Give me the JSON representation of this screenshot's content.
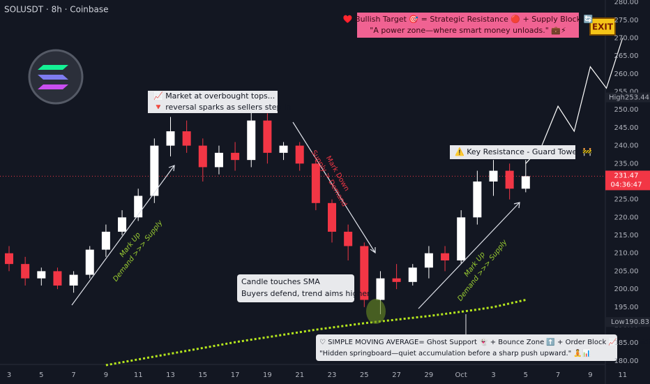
{
  "chart_data": {
    "type": "candlestick",
    "symbol": "SOLUSDT · 8h · Coinbase",
    "categories": [
      "3",
      null,
      "5",
      null,
      "7",
      null,
      "9",
      null,
      "11",
      null,
      "13",
      null,
      "15",
      null,
      "17",
      null,
      "19",
      null,
      "21",
      null,
      "23",
      null,
      "25",
      null,
      "27",
      null,
      "29",
      null,
      "Oct",
      null,
      "3",
      null,
      "5",
      null,
      "7",
      null,
      "9",
      null,
      "11"
    ],
    "open": [
      210,
      207,
      203,
      205,
      201,
      204,
      211,
      216,
      220,
      226,
      240,
      244,
      240,
      234,
      238,
      236,
      247,
      238,
      240,
      235,
      224,
      216,
      212,
      197,
      203,
      202,
      206,
      210,
      208,
      220,
      230,
      233,
      228,
      null,
      null,
      null,
      null,
      null,
      null
    ],
    "high": [
      212,
      209,
      206,
      206,
      205,
      212,
      218,
      222,
      228,
      242,
      248,
      247,
      242,
      240,
      241,
      250,
      249,
      241,
      241,
      236,
      225,
      218,
      213,
      205,
      207,
      207,
      212,
      212,
      222,
      233,
      236,
      235,
      236,
      null,
      null,
      null,
      null,
      null,
      null
    ],
    "low": [
      205,
      201,
      201,
      200,
      199,
      203,
      209,
      215,
      219,
      224,
      237,
      238,
      230,
      232,
      233,
      234,
      235,
      236,
      233,
      222,
      213,
      208,
      195,
      193,
      200,
      201,
      203,
      205,
      207,
      218,
      226,
      225,
      227,
      null,
      null,
      null,
      null,
      null,
      null
    ],
    "close": [
      207,
      203,
      205,
      201,
      204,
      211,
      216,
      220,
      226,
      240,
      244,
      240,
      234,
      238,
      236,
      247,
      238,
      240,
      235,
      224,
      216,
      212,
      197,
      203,
      202,
      206,
      210,
      208,
      220,
      230,
      233,
      228,
      231.47,
      null,
      null,
      null,
      null,
      null,
      null
    ],
    "up_color": "#ffffff",
    "down_color": "#f23645",
    "sma": {
      "color": "#b5e61d",
      "values": [
        null,
        null,
        null,
        null,
        null,
        null,
        178.8,
        179.6,
        180.4,
        181.2,
        182.0,
        182.8,
        183.6,
        184.4,
        185.2,
        185.9,
        186.6,
        187.3,
        188.0,
        188.7,
        189.3,
        189.9,
        190.5,
        191.0,
        191.5,
        192.0,
        192.5,
        193.1,
        193.7,
        194.3,
        195.0,
        196.0,
        197.0,
        null,
        null,
        null,
        null,
        null,
        null
      ]
    },
    "projection": {
      "color": "#ffffff",
      "values": [
        null,
        null,
        null,
        null,
        null,
        null,
        null,
        null,
        null,
        null,
        null,
        null,
        null,
        null,
        null,
        null,
        null,
        null,
        null,
        null,
        null,
        null,
        null,
        null,
        null,
        null,
        null,
        null,
        null,
        null,
        null,
        null,
        235,
        240,
        251,
        244,
        262,
        256,
        270
      ]
    },
    "ylim": [
      179,
      280.6
    ],
    "yticks": [
      {
        "value": 180,
        "label": "180.00"
      },
      {
        "value": 185,
        "label": "185.00"
      },
      {
        "value": 190,
        "label": "190.00"
      },
      {
        "value": 195,
        "label": "195.00"
      },
      {
        "value": 200,
        "label": "200.00"
      },
      {
        "value": 205,
        "label": "205.00"
      },
      {
        "value": 210,
        "label": "210.00"
      },
      {
        "value": 215,
        "label": "215.00"
      },
      {
        "value": 220,
        "label": "220.00"
      },
      {
        "value": 225,
        "label": "225.00"
      },
      {
        "value": 230,
        "label": "230.00"
      },
      {
        "value": 235,
        "label": "235.00"
      },
      {
        "value": 240,
        "label": "240.00"
      },
      {
        "value": 245,
        "label": "245.00"
      },
      {
        "value": 250,
        "label": "250.00"
      },
      {
        "value": 255,
        "label": "255.00"
      },
      {
        "value": 260,
        "label": "260.00"
      },
      {
        "value": 265,
        "label": "265.00"
      },
      {
        "value": 270,
        "label": "270.00"
      },
      {
        "value": 275,
        "label": "275.00"
      },
      {
        "value": 280,
        "label": "280.00"
      }
    ],
    "grid": false,
    "last_price": {
      "value": 231.47,
      "countdown": "04:36:47",
      "color": "#f23645"
    },
    "high_marker": {
      "label": "High",
      "value": 253.44
    },
    "low_marker": {
      "label": "Low",
      "value": 190.83
    },
    "annotations": {
      "overbought": [
        "📈 Market at overbought tops...",
        "🔻 reversal sparks as sellers step in."
      ],
      "mark_down": [
        "Mark Down",
        "Supply > Demand"
      ],
      "mark_up_1": [
        "Mark Up",
        "Demand >>> Supply"
      ],
      "mark_up_2": [
        "Mark Up",
        "Demand >>> Supply"
      ],
      "resistance": "⚠️ Key Resistance - Guard Tower 🚧",
      "target": [
        "♥️ Bullish Target 🎯 = Strategic Resistance 🔴 + Supply Block 🔄",
        "\"A power zone—where smart money unloads.\" 💼⚡"
      ],
      "exit": "EXIT",
      "sma_touch": [
        "Candle touches SMA",
        "Buyers defend, trend aims higher."
      ],
      "sma_note": [
        "♡ SIMPLE MOVING AVERAGE= Ghost Support 👻 + Bounce Zone ⬆️ + Order Block 📈 + Liquidity Flow 🌊",
        "\"Hidden springboard—quiet accumulation before a sharp push upward.\" 🧘📊"
      ]
    }
  }
}
